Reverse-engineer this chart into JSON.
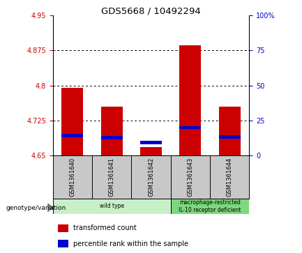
{
  "title": "GDS5668 / 10492294",
  "samples": [
    "GSM1361640",
    "GSM1361641",
    "GSM1361642",
    "GSM1361643",
    "GSM1361644"
  ],
  "red_values": [
    4.795,
    4.755,
    4.668,
    4.885,
    4.755
  ],
  "blue_values": [
    4.693,
    4.688,
    4.678,
    4.71,
    4.69
  ],
  "red_base": 4.65,
  "ylim": [
    4.65,
    4.95
  ],
  "yticks": [
    4.65,
    4.725,
    4.8,
    4.875,
    4.95
  ],
  "ytick_labels": [
    "4.65",
    "4.725",
    "4.8",
    "4.875",
    "4.95"
  ],
  "grid_values": [
    4.725,
    4.8,
    4.875
  ],
  "right_yticks": [
    0,
    25,
    50,
    75,
    100
  ],
  "right_ytick_labels": [
    "0",
    "25",
    "50",
    "75",
    "100%"
  ],
  "groups": [
    {
      "label": "wild type",
      "indices": [
        0,
        1,
        2
      ],
      "color": "#c8f0c8"
    },
    {
      "label": "macrophage-restricted\nIL-10 receptor deficient",
      "indices": [
        3,
        4
      ],
      "color": "#7dd87d"
    }
  ],
  "genotype_label": "genotype/variation",
  "legend_red": "transformed count",
  "legend_blue": "percentile rank within the sample",
  "bar_width": 0.55,
  "red_color": "#cc0000",
  "blue_color": "#0000cc",
  "bg_plot": "#ffffff",
  "bg_sample_row": "#c8c8c8",
  "left_tick_color": "#cc0000",
  "right_tick_color": "#0000cc"
}
